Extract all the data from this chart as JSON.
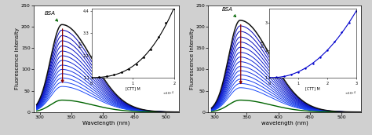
{
  "left_panel": {
    "peak_wl": 335,
    "wl_start": 295,
    "wl_end": 520,
    "peak_intensities": [
      205,
      192,
      179,
      167,
      155,
      143,
      132,
      121,
      110,
      100,
      90,
      80,
      70,
      60,
      28
    ],
    "bsa_label": "BSA",
    "xlabel": "Wavelength (nm)",
    "ylabel": "Fluorescence intensity",
    "xlim": [
      290,
      520
    ],
    "ylim": [
      0,
      250
    ],
    "yticks": [
      0,
      50,
      100,
      150,
      200,
      250
    ],
    "xticks": [
      300,
      350,
      400,
      450,
      500
    ],
    "inset": {
      "x_data": [
        0.0,
        1.8e-05,
        3.6e-05,
        5.4e-05,
        7.2e-05,
        9e-05,
        0.000108,
        0.000126,
        0.000144,
        0.000162,
        0.00018,
        0.0002
      ],
      "y_data": [
        1.1,
        1.13,
        1.18,
        1.25,
        1.38,
        1.55,
        1.78,
        2.1,
        2.5,
        3.1,
        3.8,
        4.5
      ],
      "xlabel": "[CTT] M",
      "ylabel": "F₀/F",
      "xlim": [
        0.0,
        0.0002
      ],
      "ylim": [
        1.1,
        4.5
      ],
      "yticks": [
        1.1,
        2.2,
        3.3,
        4.4
      ],
      "xticks": [
        0.0,
        0.0001,
        0.0002
      ]
    }
  },
  "right_panel": {
    "peak_wl": 340,
    "wl_start": 295,
    "wl_end": 530,
    "peak_intensities": [
      215,
      202,
      189,
      176,
      164,
      152,
      140,
      129,
      118,
      107,
      97,
      87,
      77,
      67,
      57,
      28
    ],
    "bsa_label": "BSA",
    "xlabel": "wavelength (nm)",
    "ylabel": "Fluorescence intensity",
    "xlim": [
      290,
      530
    ],
    "ylim": [
      0,
      250
    ],
    "yticks": [
      0,
      50,
      100,
      150,
      200,
      250
    ],
    "xticks": [
      300,
      350,
      400,
      450,
      500
    ],
    "inset": {
      "x_data": [
        0.0,
        2.5e-05,
        5e-05,
        7.5e-05,
        0.0001,
        0.000125,
        0.00015,
        0.000175,
        0.0002,
        0.000225,
        0.00025,
        0.000275,
        0.0003
      ],
      "y_data": [
        1.0,
        1.03,
        1.07,
        1.13,
        1.22,
        1.35,
        1.52,
        1.73,
        2.0,
        2.3,
        2.65,
        3.0,
        3.4
      ],
      "xlabel": "[CTT] M",
      "ylabel": "F₀/F",
      "xlim": [
        0.0,
        0.0003
      ],
      "ylim": [
        1.0,
        3.5
      ],
      "yticks": [
        1,
        2,
        3
      ],
      "xticks": [
        0.0,
        0.0001,
        0.0002,
        0.0003
      ]
    }
  },
  "bg_color": "#ffffff",
  "fig_bg_color": "#d0d0d0"
}
